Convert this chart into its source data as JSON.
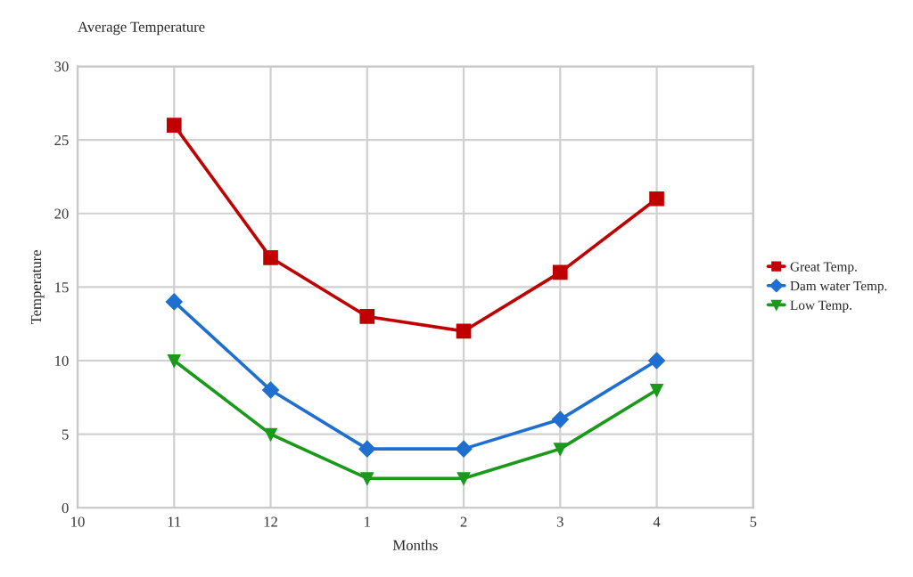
{
  "chart_data": {
    "type": "line",
    "title": "Average Temperature",
    "xlabel": "Months",
    "ylabel": "Temperature",
    "categories": [
      "10",
      "11",
      "12",
      "1",
      "2",
      "3",
      "4",
      "5"
    ],
    "series": [
      {
        "name": "Great Temp.",
        "color": "#c00000",
        "marker": "square",
        "values": [
          null,
          26,
          17,
          13,
          12,
          16,
          21,
          null
        ]
      },
      {
        "name": "Dam water Temp.",
        "color": "#1f6fd1",
        "marker": "diamond",
        "values": [
          null,
          14,
          8,
          4,
          4,
          6,
          10,
          null
        ]
      },
      {
        "name": "Low Temp.",
        "color": "#1a9a1a",
        "marker": "triangle",
        "values": [
          null,
          10,
          5,
          2,
          2,
          4,
          8,
          null
        ]
      }
    ],
    "ylim": [
      0,
      30
    ],
    "yticks": [
      0,
      5,
      10,
      15,
      20,
      25,
      30
    ],
    "grid": true,
    "legend": "right",
    "line_style": "solid"
  }
}
